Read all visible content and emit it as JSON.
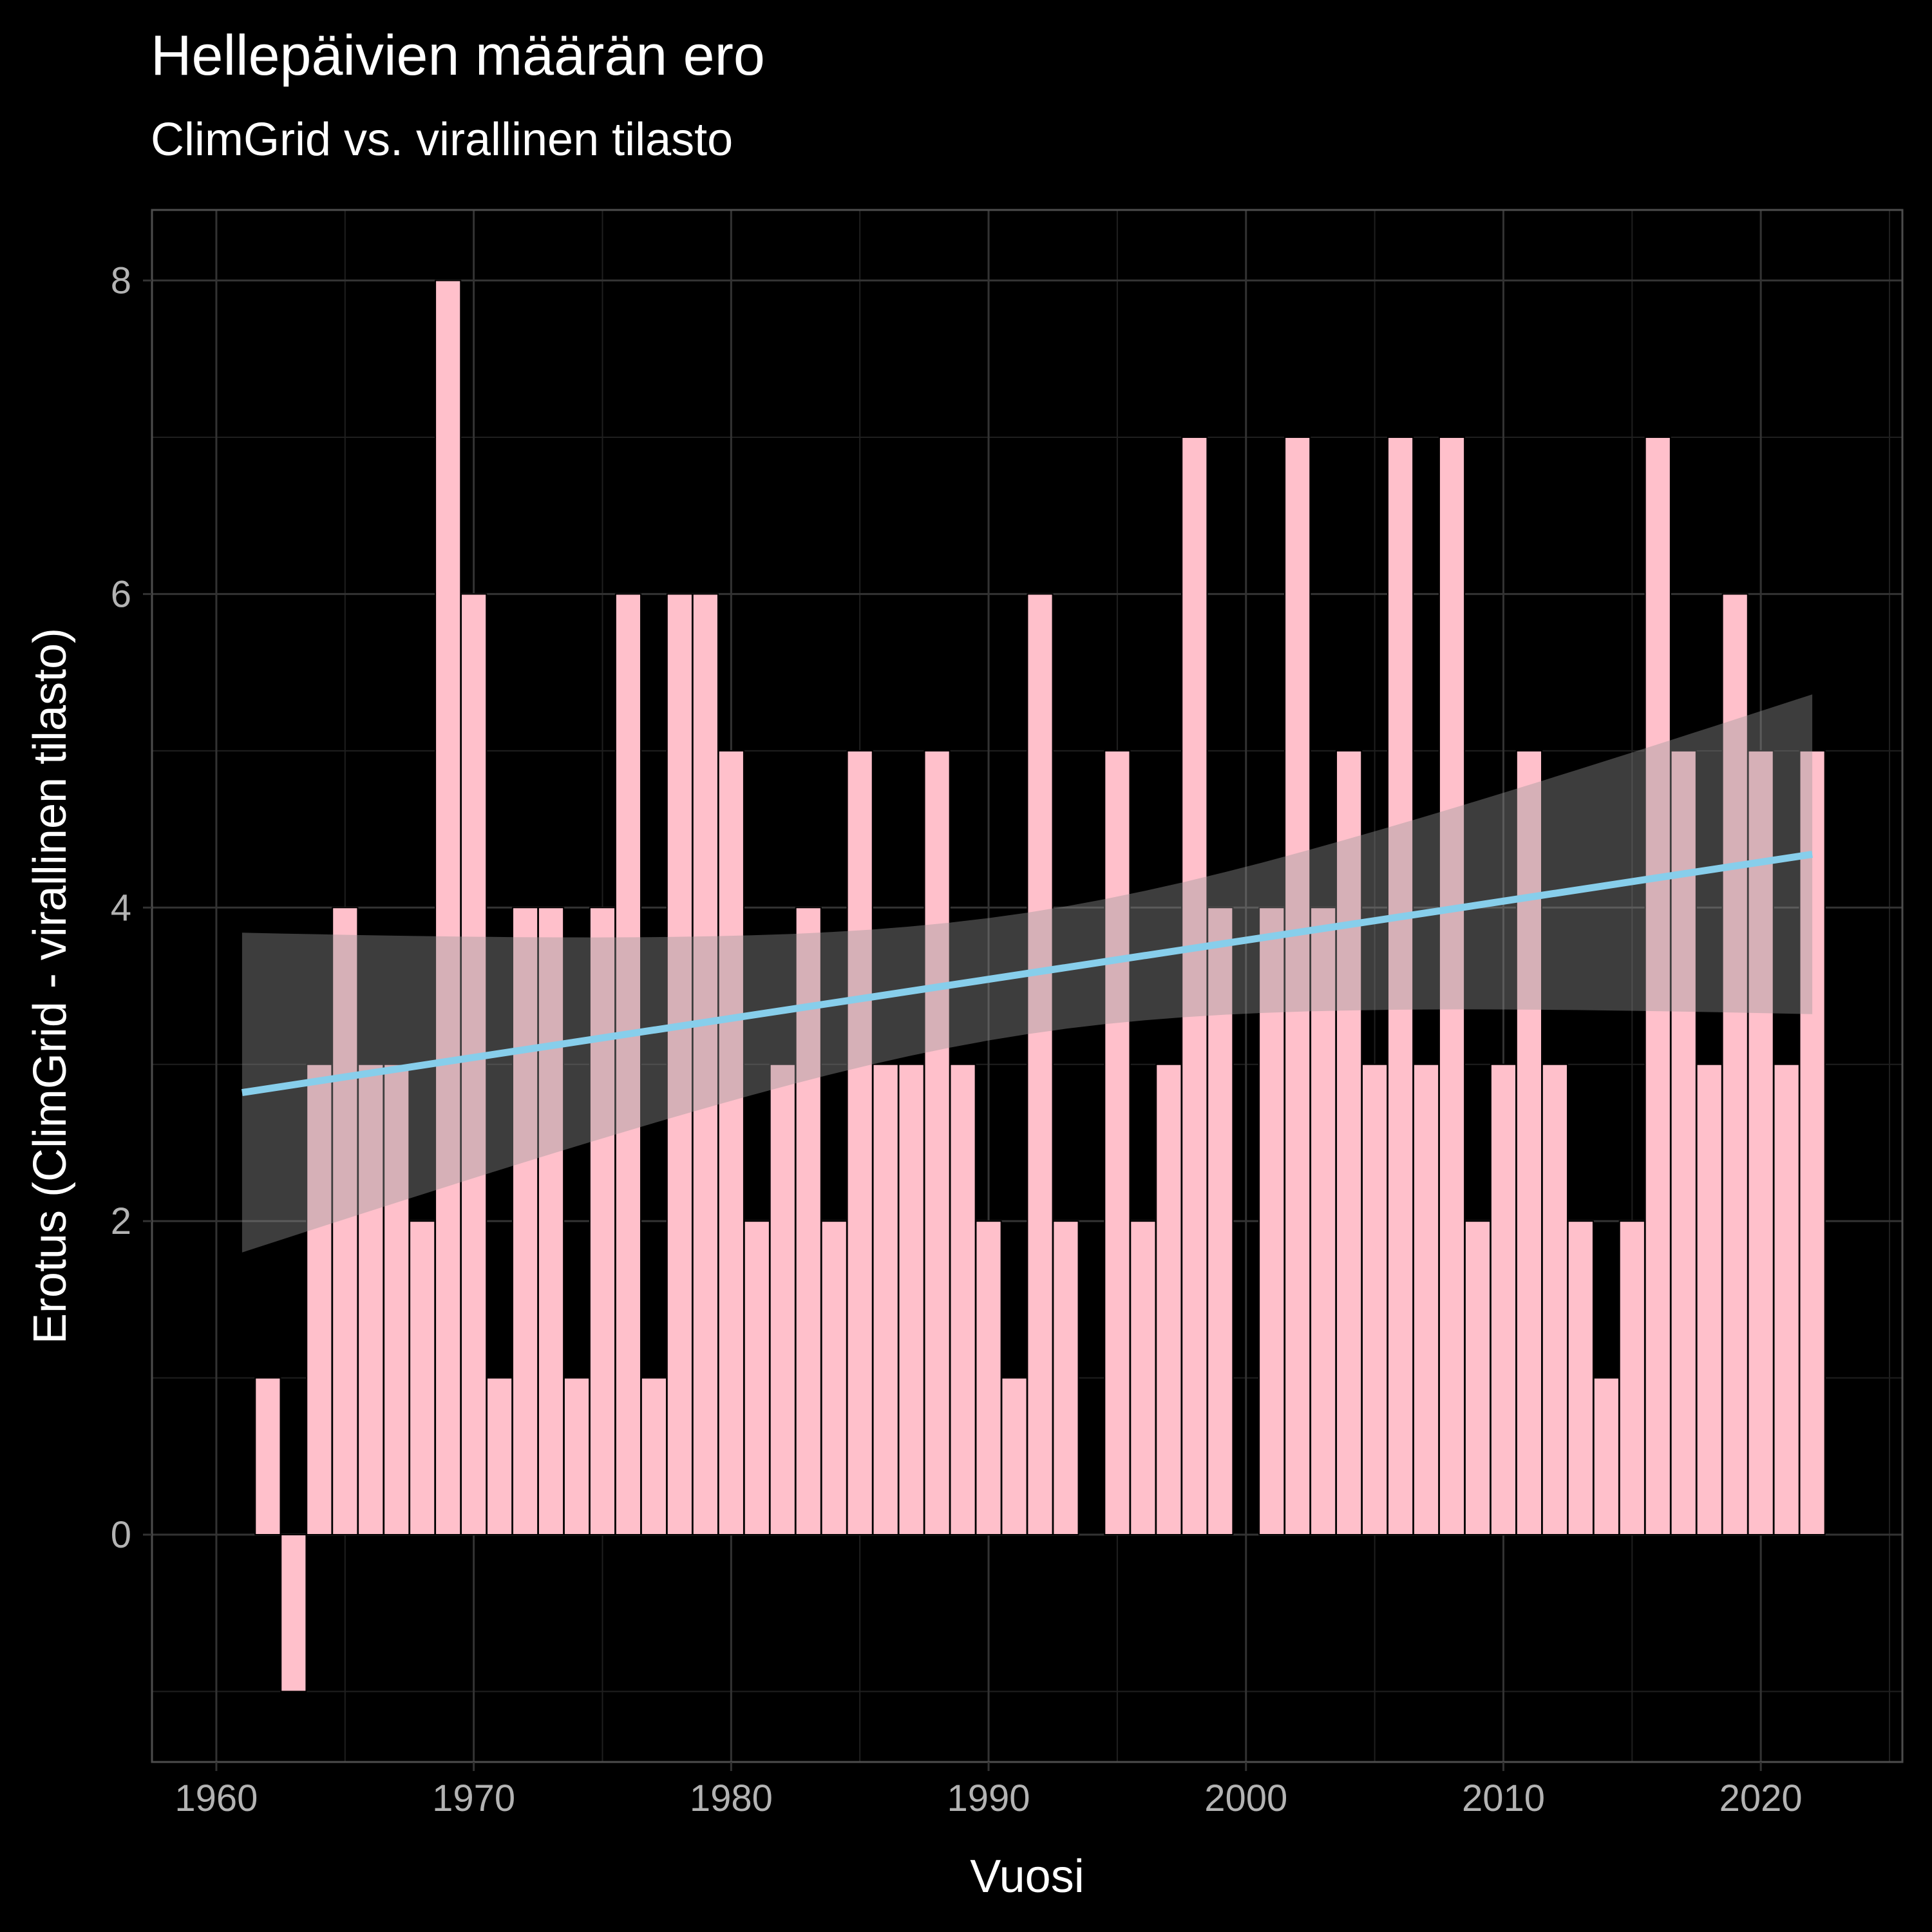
{
  "colors": {
    "background": "#000000",
    "panel_border": "#4d4d4d",
    "grid_major": "#333333",
    "grid_minor": "#1f1f1f",
    "bar_fill": "#ffc0cb",
    "bar_outline": "#000000",
    "trend_line": "#87ceeb",
    "confidence_band": "#999999",
    "tick_text": "#b3b3b3",
    "title_text": "#ffffff"
  },
  "chart_data": {
    "type": "bar",
    "title": "Hellepäivien määrän ero",
    "subtitle": "ClimGrid vs. virallinen tilasto",
    "xlabel": "Vuosi",
    "ylabel": "Erotus (ClimGrid - virallinen tilasto)",
    "xlim": [
      1957.5,
      2025.5
    ],
    "ylim": [
      -1.45,
      8.45
    ],
    "x_ticks": [
      1960,
      1970,
      1980,
      1990,
      2000,
      2010,
      2020
    ],
    "y_ticks": [
      0,
      2,
      4,
      6,
      8
    ],
    "grid": true,
    "legend": "none",
    "x": [
      1962,
      1963,
      1964,
      1965,
      1966,
      1967,
      1968,
      1969,
      1970,
      1971,
      1972,
      1973,
      1974,
      1975,
      1976,
      1977,
      1978,
      1979,
      1980,
      1981,
      1982,
      1983,
      1984,
      1985,
      1986,
      1987,
      1988,
      1989,
      1990,
      1991,
      1992,
      1993,
      1994,
      1995,
      1996,
      1997,
      1998,
      1999,
      2000,
      2001,
      2002,
      2003,
      2004,
      2005,
      2006,
      2007,
      2008,
      2009,
      2010,
      2011,
      2012,
      2013,
      2014,
      2015,
      2016,
      2017,
      2018,
      2019,
      2020,
      2021,
      2022
    ],
    "values": [
      1,
      -1,
      3,
      4,
      3,
      3,
      2,
      8,
      6,
      1,
      4,
      4,
      1,
      4,
      6,
      1,
      6,
      6,
      5,
      2,
      3,
      4,
      2,
      5,
      3,
      3,
      5,
      3,
      2,
      1,
      6,
      2,
      0,
      5,
      2,
      3,
      7,
      4,
      0,
      4,
      7,
      4,
      5,
      3,
      7,
      3,
      7,
      2,
      3,
      5,
      3,
      2,
      1,
      2,
      7,
      5,
      3,
      6,
      5,
      3,
      5
    ],
    "trend": {
      "method": "linear",
      "x_start": 1961,
      "x_end": 2022,
      "y_start": 2.82,
      "y_end": 4.34,
      "band_lower_start": 1.81,
      "band_upper_start": 3.84,
      "band_lower_end": 3.32,
      "band_upper_end": 5.36
    }
  }
}
